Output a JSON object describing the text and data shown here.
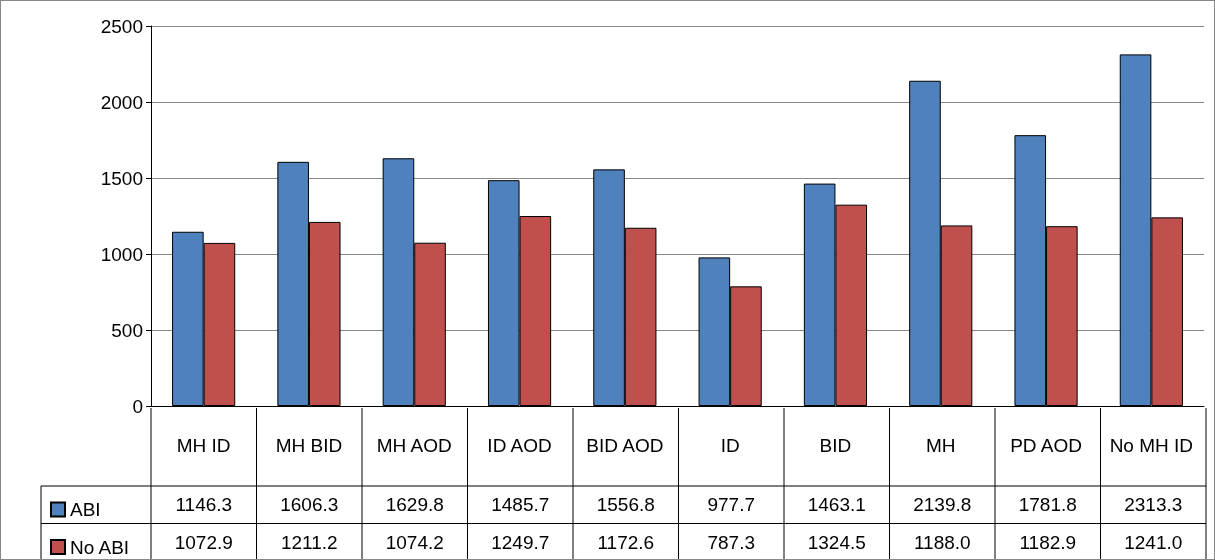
{
  "chart_data": {
    "type": "bar",
    "categories": [
      "MH ID",
      "MH BID",
      "MH AOD",
      "ID AOD",
      "BID AOD",
      "ID",
      "BID",
      "MH",
      "PD AOD",
      "No MH ID"
    ],
    "series": [
      {
        "name": "ABI",
        "color": "#4f81bd",
        "values": [
          1146.3,
          1606.3,
          1629.8,
          1485.7,
          1556.8,
          977.7,
          1463.1,
          2139.8,
          1781.8,
          2313.3
        ],
        "value_labels": [
          "1146.3",
          "1606.3",
          "1629.8",
          "1485.7",
          "1556.8",
          "977.7",
          "1463.1",
          "2139.8",
          "1781.8",
          "2313.3"
        ]
      },
      {
        "name": "No ABI",
        "color": "#c0504d",
        "values": [
          1072.9,
          1211.2,
          1074.2,
          1249.7,
          1172.6,
          787.3,
          1324.5,
          1188.0,
          1182.9,
          1241.0
        ],
        "value_labels": [
          "1072.9",
          "1211.2",
          "1074.2",
          "1249.7",
          "1172.6",
          "787.3",
          "1324.5",
          "1188.0",
          "1182.9",
          "1241.0"
        ]
      }
    ],
    "ylim": [
      0,
      2500
    ],
    "yticks": [
      0,
      500,
      1000,
      1500,
      2000,
      2500
    ],
    "grid": "y",
    "legend": "bottom left"
  }
}
